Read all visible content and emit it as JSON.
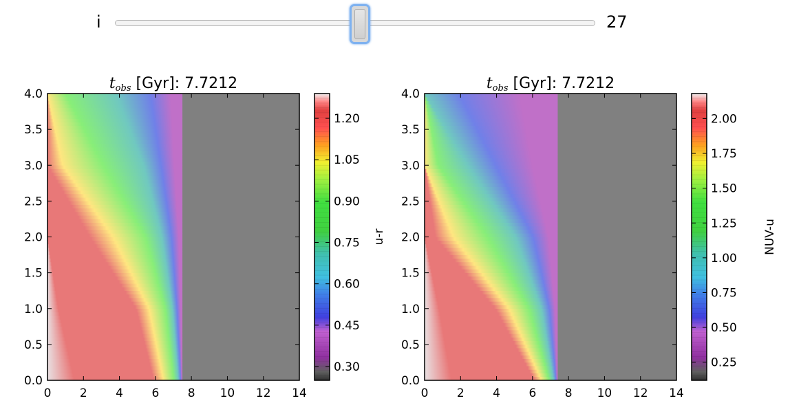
{
  "slider": {
    "label": "i",
    "value": "27",
    "min": 0,
    "max": 53,
    "fraction": 0.51
  },
  "colors": {
    "axes_fill": "#808080",
    "pale": "#e8e0e2",
    "red": "#e87878",
    "yellow": "#ffe680",
    "green": "#88ee78",
    "cyan": "#70c8c0",
    "blue": "#7080e8",
    "purple": "#c070c8"
  },
  "chart_data": [
    {
      "type": "heatmap",
      "title_var": "t",
      "title_sub": "obs",
      "title_rest": " [Gyr]: 7.7212",
      "xlim": [
        0,
        14
      ],
      "ylim": [
        0,
        4
      ],
      "xticks": [
        "0",
        "2",
        "4",
        "6",
        "8",
        "10",
        "12",
        "14"
      ],
      "yticks": [
        "0.0",
        "0.5",
        "1.0",
        "1.5",
        "2.0",
        "2.5",
        "3.0",
        "3.5",
        "4.0"
      ],
      "colorbar_label": "u-r",
      "colorbar_ticks": [
        "0.30",
        "0.45",
        "0.60",
        "0.75",
        "0.90",
        "1.05",
        "1.20"
      ],
      "colorbar_range": [
        0.25,
        1.29
      ],
      "cutoff_x": 7.5,
      "color_boundaries": [
        {
          "y": 0,
          "pale": 1.5,
          "red_end": 6.0,
          "yellow_end": 6.9,
          "green_end": 7.15,
          "cyan_end": 7.35,
          "blue_end": 7.45
        },
        {
          "y": 1,
          "pale": 0.6,
          "red_end": 5.0,
          "yellow_end": 6.3,
          "green_end": 6.8,
          "cyan_end": 7.05,
          "blue_end": 7.3
        },
        {
          "y": 2,
          "pale": 0,
          "red_end": 2.4,
          "yellow_end": 4.9,
          "green_end": 6.0,
          "cyan_end": 6.6,
          "blue_end": 7.1
        },
        {
          "y": 3,
          "pale": 0,
          "red_end": 0,
          "yellow_end": 1.7,
          "green_end": 4.5,
          "cyan_end": 5.9,
          "blue_end": 6.6
        },
        {
          "y": 4,
          "pale": 0,
          "red_end": 0,
          "yellow_end": 0,
          "green_end": 2.0,
          "cyan_end": 5.0,
          "blue_end": 6.2
        }
      ]
    },
    {
      "type": "heatmap",
      "title_var": "t",
      "title_sub": "obs",
      "title_rest": " [Gyr]: 7.7212",
      "xlim": [
        0,
        14
      ],
      "ylim": [
        0,
        4
      ],
      "xticks": [
        "0",
        "2",
        "4",
        "6",
        "8",
        "10",
        "12",
        "14"
      ],
      "yticks": [
        "0.0",
        "0.5",
        "1.0",
        "1.5",
        "2.0",
        "2.5",
        "3.0",
        "3.5",
        "4.0"
      ],
      "colorbar_label": "NUV-u",
      "colorbar_ticks": [
        "0.25",
        "0.50",
        "0.75",
        "1.00",
        "1.25",
        "1.50",
        "1.75",
        "2.00"
      ],
      "colorbar_range": [
        0.12,
        2.18
      ],
      "cutoff_x": 7.4,
      "color_boundaries": [
        {
          "y": 0,
          "pale": 1.5,
          "red_end": 6.2,
          "yellow_end": 6.8,
          "green_end": 7.05,
          "cyan_end": 7.25,
          "blue_end": 7.35
        },
        {
          "y": 1,
          "pale": 0.8,
          "red_end": 4.0,
          "yellow_end": 5.4,
          "green_end": 6.2,
          "cyan_end": 6.7,
          "blue_end": 7.1
        },
        {
          "y": 2,
          "pale": 0,
          "red_end": 0.6,
          "yellow_end": 2.6,
          "green_end": 4.4,
          "cyan_end": 5.5,
          "blue_end": 6.4
        },
        {
          "y": 3,
          "pale": 0,
          "red_end": 0,
          "yellow_end": 0,
          "green_end": 1.5,
          "cyan_end": 3.0,
          "blue_end": 4.6
        },
        {
          "y": 4,
          "pale": 0,
          "red_end": 0,
          "yellow_end": 0,
          "green_end": 0,
          "cyan_end": 0,
          "blue_end": 3.2
        }
      ]
    }
  ]
}
